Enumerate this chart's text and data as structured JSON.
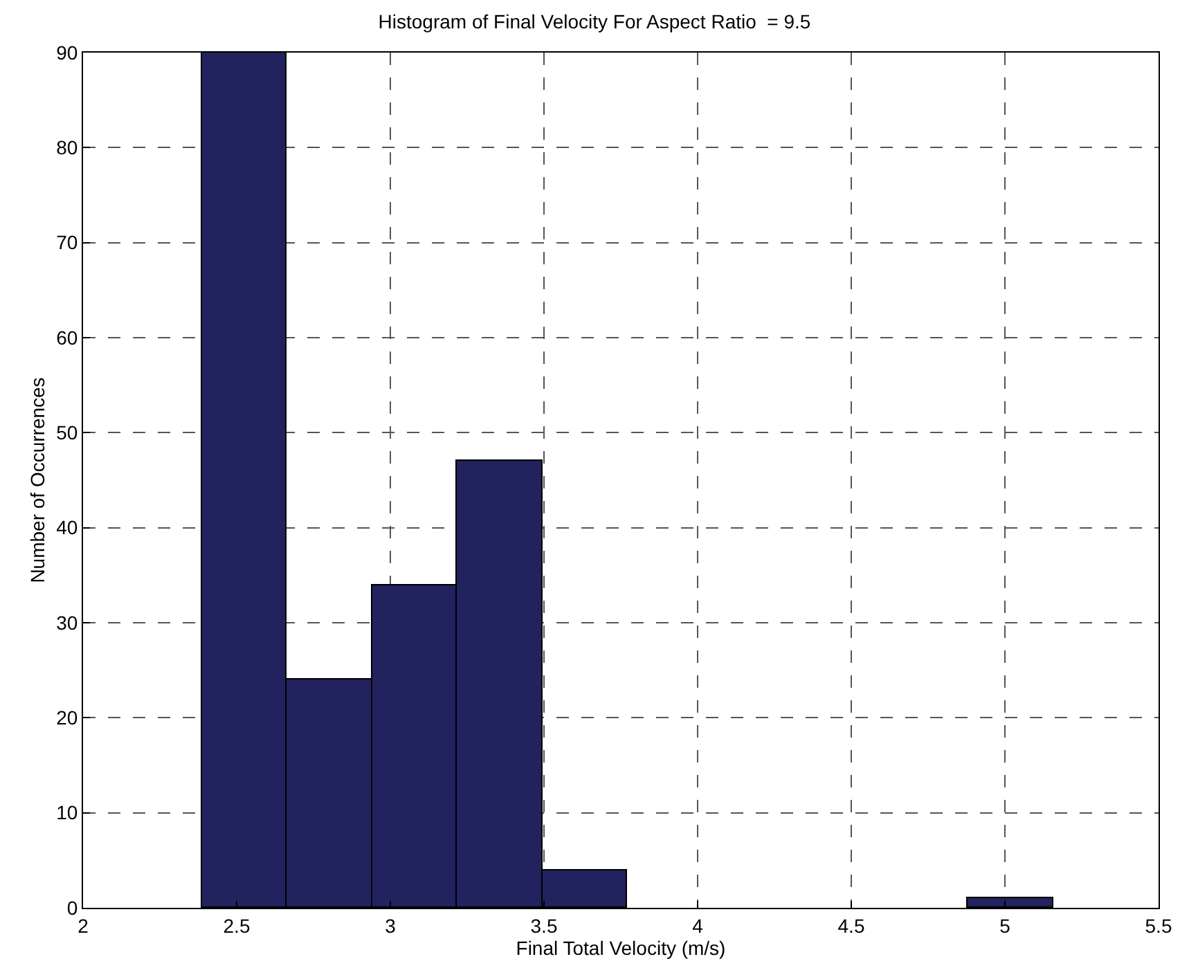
{
  "chart_data": {
    "type": "histogram",
    "title": "Histogram of Final Velocity For Aspect Ratio  = 9.5",
    "xlabel": "Final Total Velocity (m/s)",
    "ylabel": "Number of Occurrences",
    "bins": [
      2.387,
      2.664,
      2.941,
      3.218,
      3.495,
      3.772,
      4.049,
      4.326,
      4.603,
      4.88,
      5.157
    ],
    "values": [
      90,
      24,
      34,
      47,
      4,
      0,
      0,
      0,
      0,
      1
    ],
    "color": "#22225e",
    "xlim": [
      2,
      5.5
    ],
    "xticks": [
      2,
      2.5,
      3,
      3.5,
      4,
      4.5,
      5,
      5.5
    ],
    "ylim": [
      0,
      90
    ],
    "yticks": [
      0,
      10,
      20,
      30,
      40,
      50,
      60,
      70,
      80,
      90
    ],
    "grid": true,
    "line_style": "dashed"
  }
}
